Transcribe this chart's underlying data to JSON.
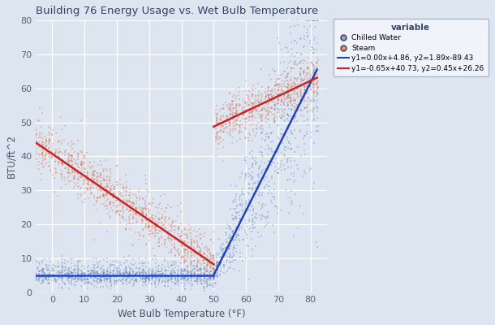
{
  "title": "Building 76 Energy Usage vs. Wet Bulb Temperature",
  "xlabel": "Wet Bulb Temperature (°F)",
  "ylabel": "BTU/ft^²",
  "xlim": [
    -5,
    85
  ],
  "ylim": [
    0,
    80
  ],
  "xticks": [
    0,
    10,
    20,
    30,
    40,
    50,
    60,
    70,
    80
  ],
  "yticks": [
    0,
    10,
    20,
    30,
    40,
    50,
    60,
    70,
    80
  ],
  "bg_color": "#dce5f0",
  "grid_color": "#ffffff",
  "chilled_color": "#6680bb",
  "steam_color": "#dd6644",
  "chilled_scatter_alpha": 0.3,
  "steam_scatter_alpha": 0.3,
  "blue_line_label": "y1=0.00x+4.86, y2=1.89x-89.43",
  "red_line_label": "y1=-0.65x+40.73, y2=0.45x+26.26",
  "blue_line_color": "#2244bb",
  "red_line_color": "#cc2222",
  "blue_slope1": 0.0,
  "blue_intercept1": 4.86,
  "blue_slope2": 1.89,
  "blue_intercept2": -89.43,
  "blue_breakpoint": 50,
  "red_slope1": -0.65,
  "red_intercept1": 40.73,
  "red_slope2": 0.45,
  "red_intercept2": 26.26,
  "red_breakpoint": 50,
  "legend_var_label": "variable",
  "chilled_label": "Chilled Water",
  "steam_label": "Steam",
  "seed": 42,
  "points_per_temp_low": 18,
  "points_per_temp_high": 25
}
